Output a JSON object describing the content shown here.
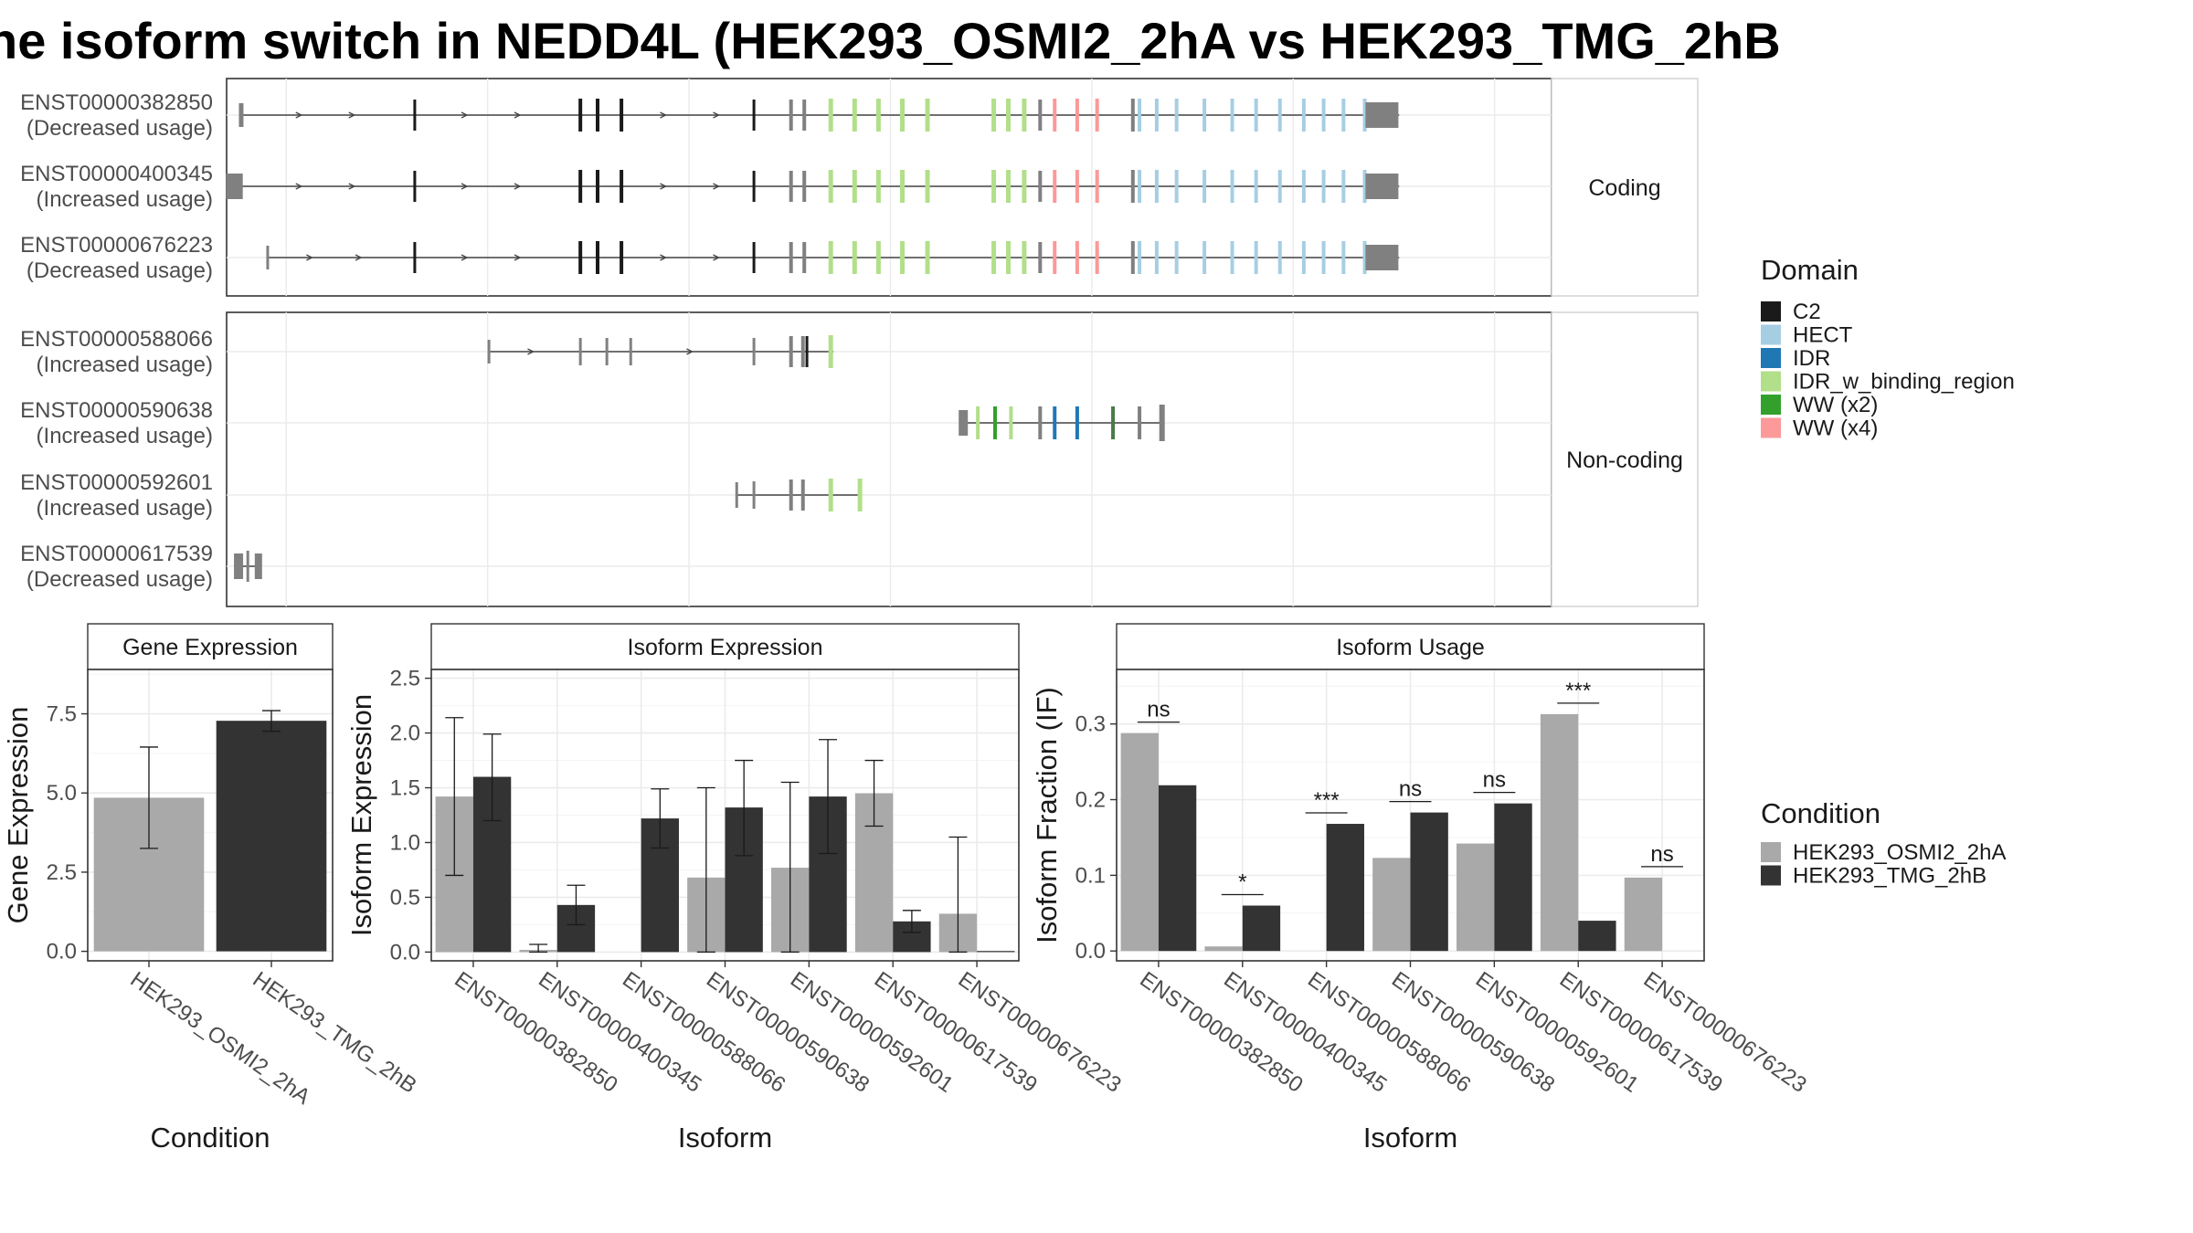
{
  "title": "he isoform switch in NEDD4L (HEK293_OSMI2_2hA vs HEK293_TMG_2hB",
  "colors": {
    "domains": {
      "C2": "#1a1a1a",
      "HECT": "#a6cee3",
      "IDR": "#1f78b4",
      "IDR_w_binding_region": "#b2df8a",
      "WW (x2)": "#33a02c",
      "WW (x4)": "#fb9a99"
    },
    "exon": "#808080",
    "conditions": {
      "HEK293_OSMI2_2hA": "#a9a9a9",
      "HEK293_TMG_2hB": "#333333"
    }
  },
  "structure": {
    "coding_label": "Coding",
    "noncoding_label": "Non-coding",
    "isoforms": [
      {
        "id": "ENST00000382850",
        "usage": "(Decreased usage)",
        "group": "coding"
      },
      {
        "id": "ENST00000400345",
        "usage": "(Increased usage)",
        "group": "coding"
      },
      {
        "id": "ENST00000676223",
        "usage": "(Decreased usage)",
        "group": "coding"
      },
      {
        "id": "ENST00000588066",
        "usage": "(Increased usage)",
        "group": "noncoding"
      },
      {
        "id": "ENST00000590638",
        "usage": "(Increased usage)",
        "group": "noncoding"
      },
      {
        "id": "ENST00000592601",
        "usage": "(Increased usage)",
        "group": "noncoding"
      },
      {
        "id": "ENST00000617539",
        "usage": "(Decreased usage)",
        "group": "noncoding"
      }
    ]
  },
  "legend_domain": {
    "title": "Domain",
    "items": [
      "C2",
      "HECT",
      "IDR",
      "IDR_w_binding_region",
      "WW (x2)",
      "WW (x4)"
    ]
  },
  "legend_condition": {
    "title": "Condition",
    "items": [
      "HEK293_OSMI2_2hA",
      "HEK293_TMG_2hB"
    ]
  },
  "chart_data": [
    {
      "type": "bar",
      "title": "Gene Expression",
      "xlabel": "Condition",
      "ylabel": "Gene Expression",
      "ylim": [
        -0.3,
        8.9
      ],
      "yticks": [
        "0.0",
        "2.5",
        "5.0",
        "7.5"
      ],
      "categories": [
        "HEK293_OSMI2_2hA",
        "HEK293_TMG_2hB"
      ],
      "values": [
        4.85,
        7.28
      ],
      "errors": [
        [
          3.25,
          6.45
        ],
        [
          6.95,
          7.6
        ]
      ]
    },
    {
      "type": "bar",
      "title": "Isoform Expression",
      "xlabel": "Isoform",
      "ylabel": "Isoform Expression",
      "ylim": [
        -0.08,
        2.58
      ],
      "yticks": [
        "0.0",
        "0.5",
        "1.0",
        "1.5",
        "2.0",
        "2.5"
      ],
      "categories": [
        "ENST00000382850",
        "ENST00000400345",
        "ENST00000588066",
        "ENST00000590638",
        "ENST00000592601",
        "ENST00000617539",
        "ENST00000676223"
      ],
      "series": [
        {
          "name": "HEK293_OSMI2_2hA",
          "values": [
            1.42,
            0.02,
            0.0,
            0.68,
            0.77,
            1.45,
            0.35
          ],
          "errors": [
            [
              0.7,
              2.14
            ],
            [
              0.0,
              0.07
            ],
            null,
            [
              0.0,
              1.5
            ],
            [
              0.0,
              1.55
            ],
            [
              1.15,
              1.75
            ],
            [
              0.0,
              1.05
            ]
          ]
        },
        {
          "name": "HEK293_TMG_2hB",
          "values": [
            1.6,
            0.43,
            1.22,
            1.32,
            1.42,
            0.28,
            0.01
          ],
          "errors": [
            [
              1.2,
              1.99
            ],
            [
              0.25,
              0.61
            ],
            [
              0.95,
              1.49
            ],
            [
              0.88,
              1.75
            ],
            [
              0.9,
              1.94
            ],
            [
              0.18,
              0.38
            ],
            null
          ]
        }
      ]
    },
    {
      "type": "bar",
      "title": "Isoform Usage",
      "xlabel": "Isoform",
      "ylabel": "Isoform Fraction (IF)",
      "ylim": [
        -0.013,
        0.372
      ],
      "yticks": [
        "0.0",
        "0.1",
        "0.2",
        "0.3"
      ],
      "categories": [
        "ENST00000382850",
        "ENST00000400345",
        "ENST00000588066",
        "ENST00000590638",
        "ENST00000592601",
        "ENST00000617539",
        "ENST00000676223"
      ],
      "series": [
        {
          "name": "HEK293_OSMI2_2hA",
          "values": [
            0.288,
            0.006,
            0.0,
            0.123,
            0.142,
            0.313,
            0.097
          ]
        },
        {
          "name": "HEK293_TMG_2hB",
          "values": [
            0.219,
            0.06,
            0.168,
            0.183,
            0.195,
            0.04,
            0.0
          ]
        }
      ],
      "significance": [
        "ns",
        "*",
        "***",
        "ns",
        "ns",
        "***",
        "ns"
      ]
    }
  ]
}
